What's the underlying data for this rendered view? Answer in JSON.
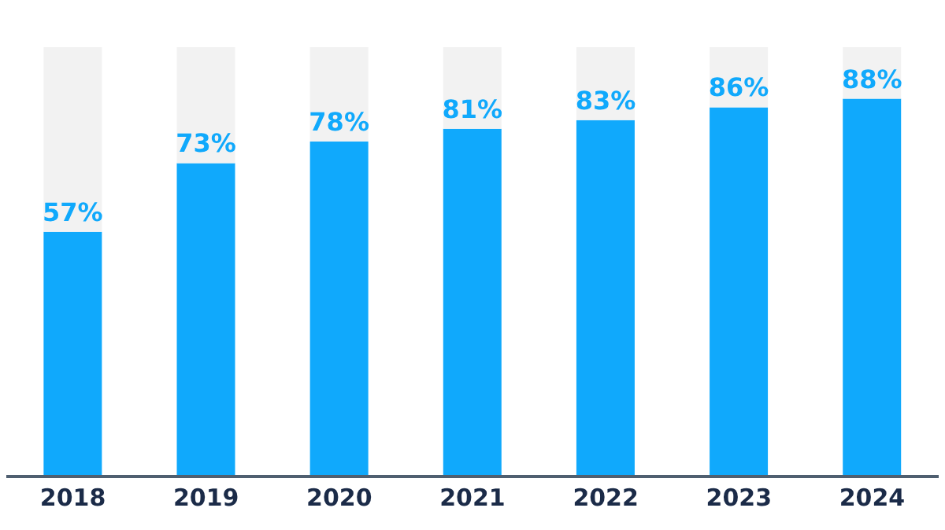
{
  "chart_data": {
    "type": "bar",
    "stacked": true,
    "categories": [
      "2018",
      "2019",
      "2020",
      "2021",
      "2022",
      "2023",
      "2024"
    ],
    "series": [
      {
        "color": "#10a9fc",
        "values": [
          57,
          73,
          78,
          81,
          83,
          86,
          88
        ],
        "value_labels": [
          "57%",
          "73%",
          "78%",
          "81%",
          "83%",
          "86%",
          "88%"
        ]
      },
      {
        "color": "#f2f2f2",
        "values": [
          43,
          27,
          22,
          19,
          17,
          14,
          12
        ]
      }
    ],
    "ylim": [
      0,
      100
    ],
    "tick_labels": "x"
  }
}
